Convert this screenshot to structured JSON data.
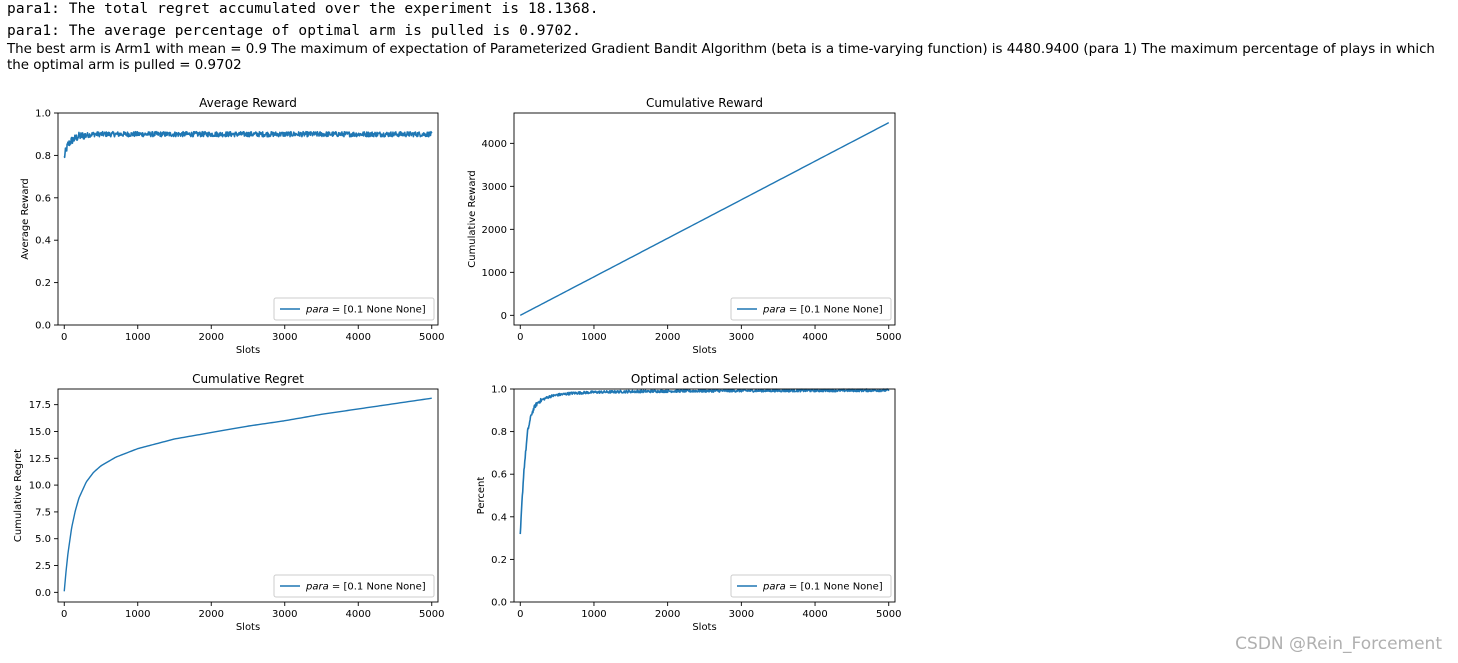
{
  "output": {
    "line1": "para1: The total regret accumulated over the experiment is 18.1368.",
    "line2": "para1: The average percentage of optimal arm is pulled is 0.9702.",
    "summary": "The best arm is Arm1 with mean = 0.9 The maximum of expectation of Parameterized Gradient Bandit Algorithm (beta is a time-varying function) is 4480.9400 (para 1) The maximum percentage of plays in which the optimal arm is pulled = 0.9702"
  },
  "watermark": "CSDN @Rein_Forcement",
  "colors": {
    "series": "#1f77b4",
    "axis": "#000000",
    "legend_border": "#cccccc"
  },
  "chart_data": [
    {
      "id": "avg",
      "type": "line",
      "title": "Average Reward",
      "xlabel": "Slots",
      "ylabel": "Average Reward",
      "xlim": [
        -85,
        5085
      ],
      "ylim": [
        0.0,
        1.0
      ],
      "xticks": [
        0,
        1000,
        2000,
        3000,
        4000,
        5000
      ],
      "yticks": [
        0.0,
        0.2,
        0.4,
        0.6,
        0.8,
        1.0
      ],
      "ytick_decimals": 1,
      "legend": "top-right-off",
      "legend_position": "lower right",
      "series": [
        {
          "name": "para = [0.1 None None]",
          "x": [
            0,
            20,
            50,
            100,
            150,
            200,
            300,
            400,
            600,
            800,
            1000,
            1500,
            2000,
            2500,
            3000,
            3500,
            4000,
            4500,
            5000
          ],
          "y": [
            0.79,
            0.82,
            0.85,
            0.87,
            0.88,
            0.89,
            0.895,
            0.9,
            0.9,
            0.9,
            0.9,
            0.9,
            0.9,
            0.9,
            0.9,
            0.9,
            0.9,
            0.9,
            0.9
          ],
          "noise": 0.012
        }
      ]
    },
    {
      "id": "cumrew",
      "type": "line",
      "title": "Cumulative Reward",
      "xlabel": "Slots",
      "ylabel": "Cumulative Reward",
      "xlim": [
        -85,
        5085
      ],
      "ylim": [
        -225,
        4706
      ],
      "xticks": [
        0,
        1000,
        2000,
        3000,
        4000,
        5000
      ],
      "yticks": [
        0,
        1000,
        2000,
        3000,
        4000
      ],
      "ytick_decimals": 0,
      "legend_position": "lower right",
      "series": [
        {
          "name": "para = [0.1 None None]",
          "x": [
            0,
            1000,
            2000,
            3000,
            4000,
            5000
          ],
          "y": [
            0,
            895,
            1792,
            2688,
            3585,
            4481
          ],
          "noise": 0
        }
      ]
    },
    {
      "id": "regret",
      "type": "line",
      "title": "Cumulative Regret",
      "xlabel": "Slots",
      "ylabel": "Cumulative Regret",
      "xlim": [
        -85,
        5085
      ],
      "ylim": [
        -0.9,
        18.96
      ],
      "xticks": [
        0,
        1000,
        2000,
        3000,
        4000,
        5000
      ],
      "yticks": [
        0.0,
        2.5,
        5.0,
        7.5,
        10.0,
        12.5,
        15.0,
        17.5
      ],
      "ytick_decimals": 1,
      "legend_position": "lower right",
      "series": [
        {
          "name": "para = [0.1 None None]",
          "x": [
            0,
            25,
            50,
            100,
            150,
            200,
            300,
            400,
            500,
            700,
            1000,
            1500,
            2000,
            2500,
            3000,
            3500,
            4000,
            4500,
            5000
          ],
          "y": [
            0.1,
            2.0,
            3.6,
            6.0,
            7.6,
            8.8,
            10.3,
            11.2,
            11.8,
            12.6,
            13.4,
            14.3,
            14.9,
            15.5,
            16.0,
            16.6,
            17.1,
            17.6,
            18.1
          ],
          "noise": 0
        }
      ]
    },
    {
      "id": "optimal",
      "type": "line",
      "title": "Optimal action Selection",
      "xlabel": "Slots",
      "ylabel": "Percent",
      "xlim": [
        -85,
        5085
      ],
      "ylim": [
        0.0,
        1.0
      ],
      "xticks": [
        0,
        1000,
        2000,
        3000,
        4000,
        5000
      ],
      "yticks": [
        0.0,
        0.2,
        0.4,
        0.6,
        0.8,
        1.0
      ],
      "ytick_decimals": 1,
      "legend_position": "lower right",
      "series": [
        {
          "name": "para = [0.1 None None]",
          "x": [
            0,
            20,
            50,
            100,
            150,
            200,
            250,
            300,
            400,
            500,
            700,
            1000,
            1500,
            2000,
            3000,
            4000,
            5000
          ],
          "y": [
            0.31,
            0.45,
            0.62,
            0.8,
            0.88,
            0.92,
            0.94,
            0.95,
            0.965,
            0.972,
            0.98,
            0.985,
            0.988,
            0.99,
            0.992,
            0.993,
            0.994
          ],
          "noise": 0.006
        }
      ]
    }
  ]
}
